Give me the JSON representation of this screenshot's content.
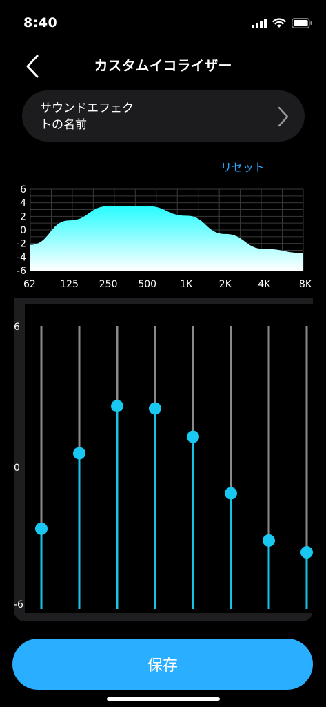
{
  "status": {
    "time": "8:40"
  },
  "header": {
    "title": "カスタムイコライザー"
  },
  "effect": {
    "name": "サウンドエフェク\nトの名前"
  },
  "reset_label": "リセット",
  "chart_data": {
    "type": "area",
    "x_labels": [
      "62",
      "125",
      "250",
      "500",
      "1K",
      "2K",
      "4K",
      "8K"
    ],
    "y_ticks": [
      "6",
      "4",
      "2",
      "0",
      "-2",
      "-4",
      "-6"
    ],
    "ylim": [
      -6,
      6
    ],
    "values": [
      -2.2,
      1.4,
      3.5,
      3.5,
      2.1,
      -0.6,
      -2.8,
      -3.4
    ],
    "fill_top": "#27fcff",
    "fill_bottom": "#ffffff",
    "grid": true
  },
  "equalizer": {
    "scale_labels": [
      "6",
      "0",
      "-6"
    ],
    "range": [
      -6,
      6
    ],
    "bands": [
      -2.6,
      0.6,
      2.6,
      2.5,
      1.3,
      -1.1,
      -3.1,
      -3.6
    ],
    "active_color": "#19c3e6",
    "track_color": "#8a8a8e",
    "knob_color": "#18c8f0"
  },
  "save_label": "保存"
}
